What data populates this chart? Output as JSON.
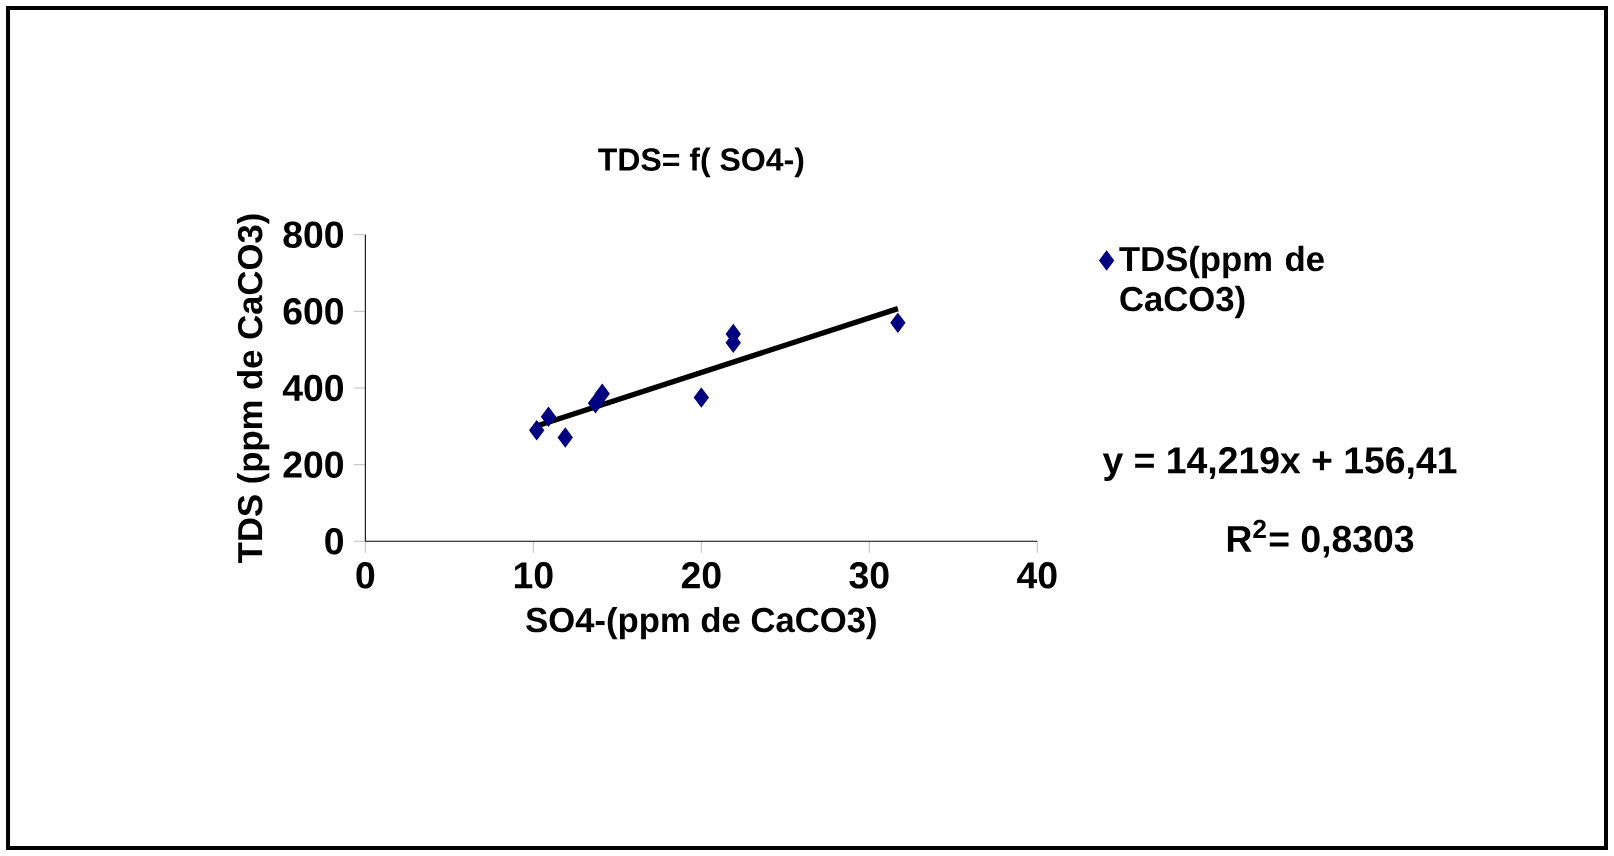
{
  "chart_data": {
    "type": "scatter",
    "title": "TDS= f( SO4-)",
    "xlabel": "SO4-(ppm de CaCO3)",
    "ylabel": "TDS (ppm de CaCO3)",
    "series": [
      {
        "name": "TDS(ppm de CaCO3)",
        "color": "#000080",
        "marker": "diamond",
        "x": [
          10.2,
          10.9,
          11.9,
          13.7,
          14.0,
          14.1,
          20.0,
          21.9,
          21.9,
          31.7
        ],
        "values": [
          290,
          325,
          271,
          360,
          null,
          385,
          375,
          518,
          541,
          570
        ]
      },
      {
        "type": "line",
        "color": "#000000",
        "x": [
          10.2,
          31.7
        ],
        "values": [
          301,
          607
        ]
      }
    ],
    "xlim": [
      0,
      40
    ],
    "xticks": [
      0,
      10,
      20,
      30,
      40
    ],
    "ylim": [
      0,
      800
    ],
    "yticks": [
      0,
      200,
      400,
      600,
      800
    ],
    "grid": false,
    "legend": "right",
    "annotations": [
      "y = 14,219x + 156,41",
      "R$^{2}$= 0,8303"
    ]
  }
}
